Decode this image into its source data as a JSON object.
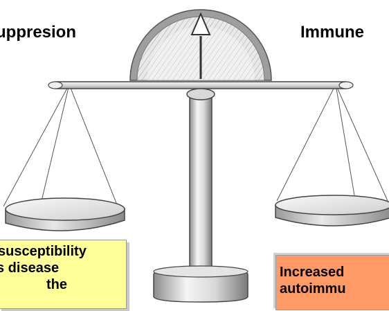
{
  "labels": {
    "left": "uppresion",
    "right": "Immune"
  },
  "boxes": {
    "left": {
      "lines": [
        "susceptibility",
        "s disease",
        "the"
      ],
      "color": "#ffff99"
    },
    "right": {
      "lines": [
        "Increased",
        "autoimmu"
      ],
      "color": "#ff9966"
    }
  },
  "colors": {
    "metal_light": "#f2f2f2",
    "metal_mid": "#cfcfcf",
    "metal_dark": "#8c8c8c",
    "outline": "#444444"
  }
}
